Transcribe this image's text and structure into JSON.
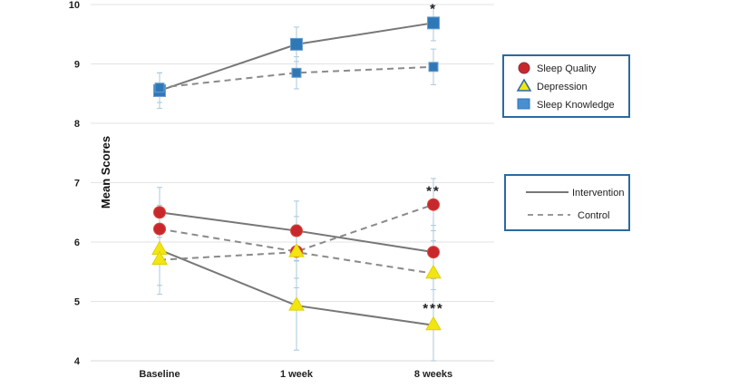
{
  "chart_data": {
    "type": "line",
    "title": "",
    "xlabel": "",
    "ylabel": "Mean Scores",
    "ylim": [
      4,
      10
    ],
    "yticks": [
      "4",
      "5",
      "6",
      "7",
      "8",
      "9",
      "10"
    ],
    "categories": [
      "Baseline",
      "1 week",
      "8 weeks"
    ],
    "grid": true,
    "colors": {
      "sleep_quality": "#c8282d",
      "depression": "#f2e612",
      "sleep_knowledge": "#2f78b8",
      "line": "#777777",
      "error_bar": "#a8c8dc",
      "legend_border": "#2b6aa0"
    },
    "series": [
      {
        "measure": "Sleep Knowledge",
        "group": "Intervention",
        "marker": "square",
        "values": [
          8.55,
          9.33,
          9.69
        ],
        "error": [
          0.3,
          0.29,
          0.3
        ]
      },
      {
        "measure": "Sleep Knowledge",
        "group": "Control",
        "marker": "square",
        "values": [
          8.6,
          8.85,
          8.95
        ],
        "error": [
          0.25,
          0.27,
          0.3
        ]
      },
      {
        "measure": "Sleep Quality",
        "group": "Intervention",
        "marker": "circle",
        "values": [
          6.5,
          6.19,
          5.83
        ],
        "error": [
          0.42,
          0.5,
          0.45
        ]
      },
      {
        "measure": "Sleep Quality",
        "group": "Control",
        "marker": "circle",
        "values": [
          6.22,
          5.84,
          6.63
        ],
        "error": [
          0.4,
          0.45,
          0.44
        ]
      },
      {
        "measure": "Depression",
        "group": "Intervention",
        "marker": "triangle",
        "values": [
          5.87,
          4.93,
          4.6
        ],
        "error": [
          0.6,
          0.75,
          0.6
        ]
      },
      {
        "measure": "Depression",
        "group": "Control",
        "marker": "triangle",
        "values": [
          5.7,
          5.83,
          5.47
        ],
        "error": [
          0.58,
          0.6,
          0.55
        ]
      }
    ],
    "annotations": [
      {
        "text": "*",
        "category": "8 weeks",
        "value": 9.95
      },
      {
        "text": "**",
        "category": "8 weeks",
        "value": 6.88
      },
      {
        "text": "***",
        "category": "8 weeks",
        "value": 4.9
      }
    ],
    "legend_markers": {
      "placement": "right",
      "items": [
        {
          "label": "Sleep Quality",
          "marker": "circle"
        },
        {
          "label": "Depression",
          "marker": "triangle"
        },
        {
          "label": "Sleep Knowledge",
          "marker": "square"
        }
      ]
    },
    "legend_lines": {
      "placement": "right",
      "items": [
        {
          "label": "Intervention",
          "style": "solid"
        },
        {
          "label": "Control",
          "style": "dashed"
        }
      ]
    }
  }
}
